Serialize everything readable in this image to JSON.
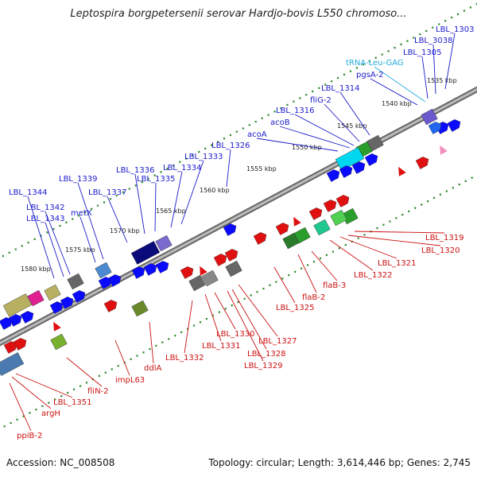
{
  "title": "Leptospira borgpetersenii serovar Hardjo-bovis L550 chromoso...",
  "footer": {
    "accession": "Accession: NC_008508",
    "summary": "Topology: circular; Length: 3,614,446 bp; Genes: 2,745"
  },
  "colors": {
    "backbone": "#888888",
    "tick": "#2e8b2e",
    "label_forward": "#1a1acc",
    "label_reverse": "#cc1111",
    "label_trna": "#22aadd"
  },
  "ticks": [
    "1535 kbp",
    "1540 kbp",
    "1545 kbp",
    "1550 kbp",
    "1555 kbp",
    "1560 kbp",
    "1565 kbp",
    "1570 kbp",
    "1575 kbp",
    "1580 kbp"
  ],
  "forward_labels": [
    "LBL_1303",
    "LBL_3038",
    "LBL_1305",
    "tRNA-Leu-GAG",
    "pgsA-2",
    "LBL_1314",
    "fliG-2",
    "LBL_1316",
    "acoB",
    "acoA",
    "LBL_1326",
    "LBL_1333",
    "LBL_1334",
    "LBL_1335",
    "LBL_1336",
    "LBL_1337",
    "LBL_1339",
    "metX",
    "LBL_1342",
    "LBL_1343",
    "LBL_1344"
  ],
  "reverse_labels": [
    "LBL_1319",
    "LBL_1320",
    "LBL_1321",
    "LBL_1322",
    "flaB-3",
    "flaB-2",
    "LBL_1325",
    "LBL_1327",
    "LBL_1328",
    "LBL_1329",
    "LBL_1330",
    "LBL_1331",
    "LBL_1332",
    "ddlA",
    "impL63",
    "fliN-2",
    "LBL_1351",
    "argH",
    "ppiB-2"
  ]
}
